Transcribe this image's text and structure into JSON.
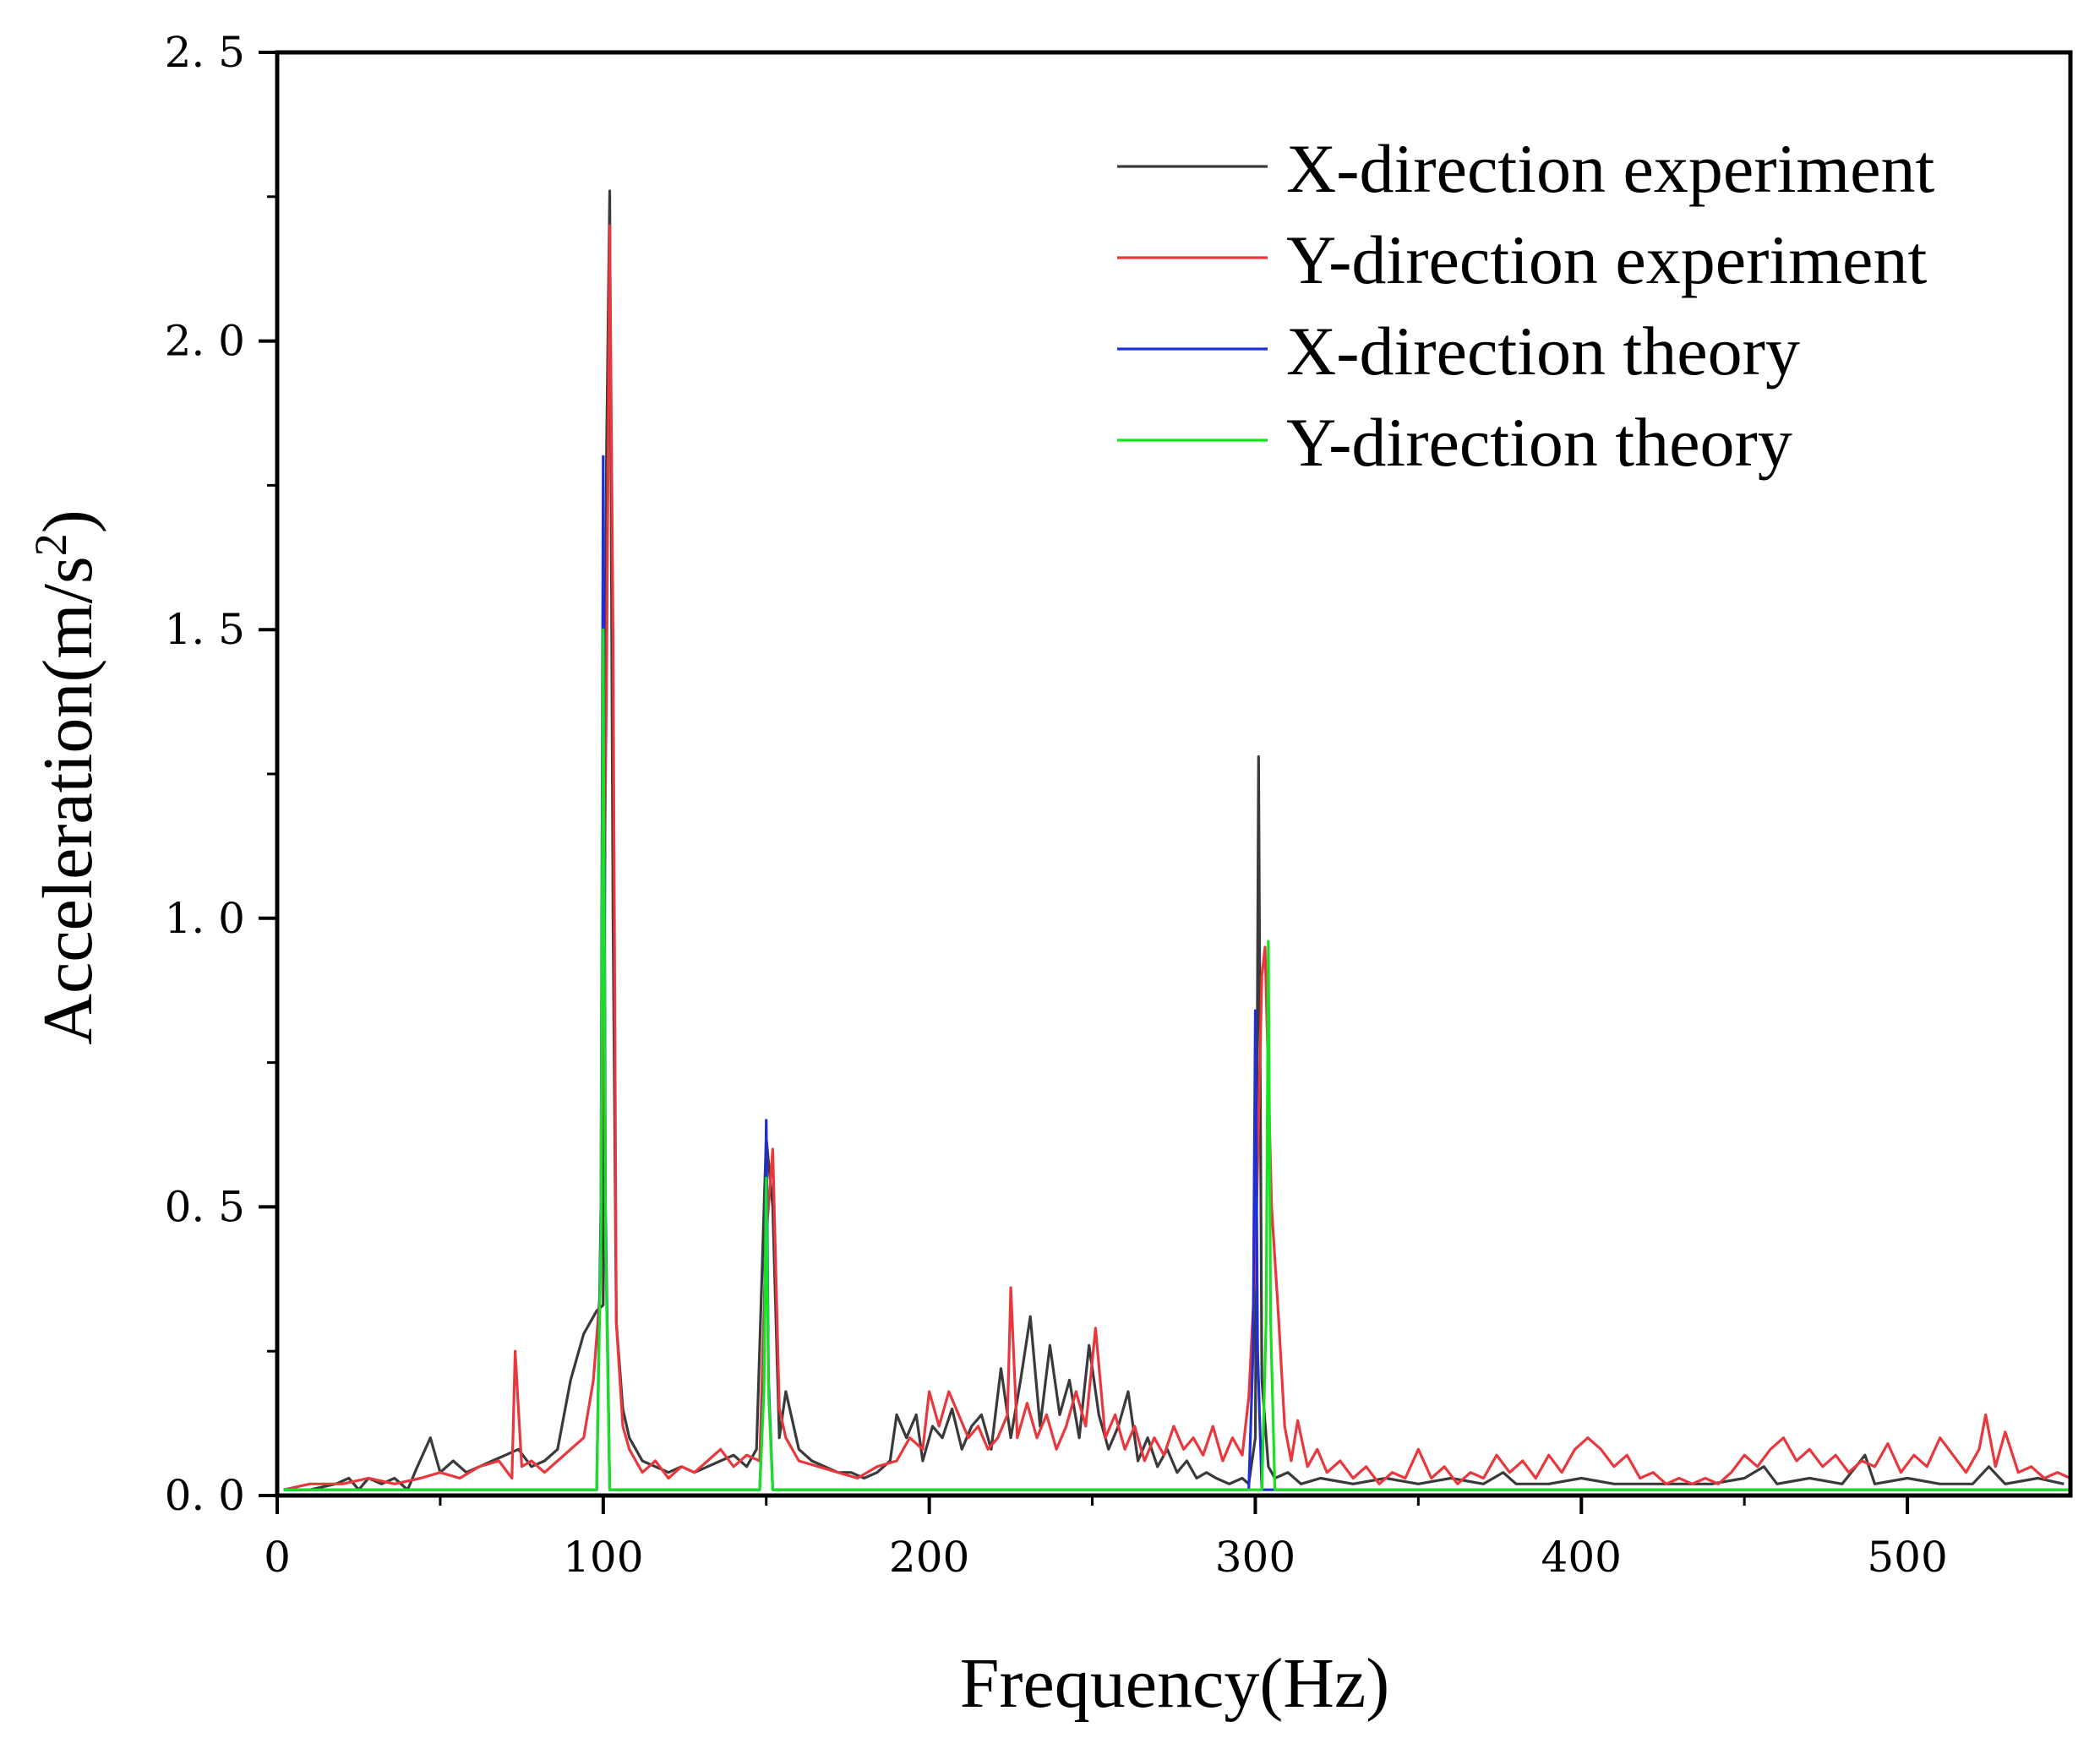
{
  "chart_data": {
    "type": "line",
    "title": "",
    "xlabel": "Frequency(Hz)",
    "ylabel": "Acceleration(m/s",
    "ylabel_superscript": "2",
    "ylabel_close": ")",
    "xlim": [
      0,
      550
    ],
    "ylim": [
      0,
      2.5
    ],
    "xticks": [
      0,
      100,
      200,
      300,
      400,
      500
    ],
    "xtick_labels": [
      "0",
      "100",
      "200",
      "300",
      "400",
      "500"
    ],
    "yticks": [
      0,
      0.5,
      1.0,
      1.5,
      2.0,
      2.5
    ],
    "ytick_labels": [
      "0. 0",
      "0. 5",
      "1. 0",
      "1. 5",
      "2. 0",
      "2. 5"
    ],
    "grid": false,
    "legend_position": "top-right",
    "series": [
      {
        "name": "X-direction experiment",
        "color": "#3a3a3a",
        "x": [
          2,
          10,
          18,
          22,
          25,
          28,
          32,
          36,
          40,
          43,
          47,
          50,
          54,
          58,
          62,
          66,
          70,
          74,
          78,
          82,
          86,
          90,
          94,
          96,
          98,
          100,
          101,
          102,
          103,
          104,
          106,
          108,
          112,
          116,
          120,
          124,
          128,
          132,
          136,
          140,
          144,
          147,
          150,
          152,
          154,
          156,
          160,
          164,
          168,
          172,
          176,
          180,
          184,
          188,
          190,
          193,
          196,
          198,
          201,
          204,
          207,
          210,
          213,
          216,
          219,
          222,
          225,
          228,
          231,
          234,
          237,
          240,
          243,
          246,
          249,
          252,
          255,
          258,
          261,
          264,
          267,
          270,
          273,
          276,
          279,
          282,
          285,
          288,
          292,
          296,
          298,
          300,
          301,
          302,
          304,
          306,
          310,
          314,
          320,
          330,
          340,
          350,
          360,
          370,
          376,
          380,
          390,
          400,
          410,
          420,
          430,
          440,
          450,
          456,
          460,
          470,
          480,
          487,
          490,
          500,
          510,
          520,
          525,
          530,
          540,
          548
        ],
        "y": [
          0.01,
          0.01,
          0.02,
          0.03,
          0.01,
          0.03,
          0.02,
          0.03,
          0.01,
          0.05,
          0.1,
          0.04,
          0.06,
          0.04,
          0.05,
          0.06,
          0.07,
          0.08,
          0.05,
          0.06,
          0.08,
          0.2,
          0.28,
          0.3,
          0.32,
          0.33,
          1.8,
          2.26,
          1.0,
          0.3,
          0.15,
          0.1,
          0.06,
          0.05,
          0.04,
          0.05,
          0.04,
          0.05,
          0.06,
          0.07,
          0.05,
          0.08,
          0.62,
          0.5,
          0.1,
          0.18,
          0.08,
          0.06,
          0.05,
          0.04,
          0.04,
          0.03,
          0.04,
          0.06,
          0.14,
          0.1,
          0.14,
          0.06,
          0.12,
          0.1,
          0.15,
          0.08,
          0.12,
          0.14,
          0.08,
          0.22,
          0.1,
          0.2,
          0.31,
          0.12,
          0.26,
          0.14,
          0.2,
          0.1,
          0.26,
          0.14,
          0.08,
          0.12,
          0.18,
          0.06,
          0.1,
          0.05,
          0.08,
          0.04,
          0.06,
          0.03,
          0.04,
          0.03,
          0.02,
          0.03,
          0.02,
          0.1,
          1.28,
          0.2,
          0.05,
          0.03,
          0.04,
          0.02,
          0.03,
          0.02,
          0.03,
          0.02,
          0.03,
          0.02,
          0.04,
          0.02,
          0.02,
          0.03,
          0.02,
          0.02,
          0.02,
          0.02,
          0.03,
          0.05,
          0.02,
          0.03,
          0.02,
          0.07,
          0.02,
          0.03,
          0.02,
          0.02,
          0.05,
          0.02,
          0.03,
          0.02
        ]
      },
      {
        "name": "Y-direction experiment",
        "color": "#e8383d",
        "x": [
          2,
          10,
          20,
          28,
          36,
          44,
          50,
          56,
          62,
          68,
          72,
          73,
          75,
          78,
          82,
          86,
          90,
          94,
          97,
          99,
          101,
          102,
          103,
          104,
          106,
          108,
          112,
          116,
          120,
          124,
          128,
          132,
          136,
          140,
          144,
          148,
          150,
          152,
          154,
          156,
          160,
          166,
          172,
          178,
          184,
          190,
          194,
          198,
          200,
          203,
          206,
          209,
          212,
          215,
          218,
          221,
          224,
          225,
          227,
          230,
          233,
          236,
          239,
          242,
          245,
          248,
          251,
          254,
          257,
          260,
          263,
          266,
          269,
          272,
          275,
          278,
          281,
          284,
          287,
          290,
          293,
          296,
          298,
          300,
          302,
          303,
          305,
          307,
          309,
          311,
          313,
          316,
          319,
          322,
          326,
          330,
          334,
          338,
          342,
          346,
          350,
          354,
          358,
          362,
          366,
          370,
          374,
          378,
          382,
          386,
          390,
          394,
          398,
          402,
          406,
          410,
          414,
          418,
          422,
          426,
          430,
          434,
          438,
          442,
          446,
          450,
          454,
          458,
          462,
          466,
          470,
          474,
          478,
          482,
          486,
          490,
          494,
          498,
          502,
          506,
          510,
          514,
          518,
          522,
          524,
          527,
          530,
          534,
          538,
          542,
          546,
          550
        ],
        "y": [
          0.01,
          0.02,
          0.02,
          0.03,
          0.02,
          0.03,
          0.04,
          0.03,
          0.05,
          0.06,
          0.03,
          0.25,
          0.05,
          0.06,
          0.04,
          0.06,
          0.08,
          0.1,
          0.2,
          0.35,
          1.4,
          2.2,
          1.5,
          0.3,
          0.12,
          0.08,
          0.04,
          0.06,
          0.03,
          0.05,
          0.04,
          0.06,
          0.08,
          0.05,
          0.07,
          0.06,
          0.45,
          0.6,
          0.15,
          0.1,
          0.06,
          0.05,
          0.04,
          0.03,
          0.05,
          0.06,
          0.1,
          0.08,
          0.18,
          0.12,
          0.18,
          0.14,
          0.1,
          0.12,
          0.08,
          0.1,
          0.14,
          0.36,
          0.1,
          0.16,
          0.1,
          0.14,
          0.08,
          0.12,
          0.18,
          0.12,
          0.29,
          0.1,
          0.14,
          0.08,
          0.12,
          0.06,
          0.1,
          0.07,
          0.12,
          0.08,
          0.1,
          0.07,
          0.12,
          0.06,
          0.1,
          0.07,
          0.17,
          0.4,
          0.9,
          0.95,
          0.5,
          0.32,
          0.12,
          0.06,
          0.13,
          0.05,
          0.08,
          0.04,
          0.06,
          0.03,
          0.05,
          0.02,
          0.04,
          0.03,
          0.08,
          0.03,
          0.05,
          0.02,
          0.04,
          0.03,
          0.07,
          0.04,
          0.06,
          0.03,
          0.07,
          0.04,
          0.08,
          0.1,
          0.08,
          0.05,
          0.07,
          0.03,
          0.04,
          0.02,
          0.03,
          0.02,
          0.03,
          0.02,
          0.04,
          0.07,
          0.05,
          0.08,
          0.1,
          0.06,
          0.08,
          0.05,
          0.07,
          0.04,
          0.06,
          0.05,
          0.09,
          0.04,
          0.07,
          0.05,
          0.1,
          0.07,
          0.04,
          0.08,
          0.14,
          0.05,
          0.11,
          0.04,
          0.05,
          0.03,
          0.04,
          0.03
        ]
      },
      {
        "name": "X-direction theory",
        "color": "#1f2fd6",
        "x": [
          2,
          98,
          99.3,
          100,
          100.7,
          102,
          148,
          149.3,
          150,
          150.7,
          152,
          298,
          299.3,
          300,
          300.7,
          302,
          550
        ],
        "y": [
          0.01,
          0.01,
          0.5,
          1.8,
          0.5,
          0.01,
          0.01,
          0.2,
          0.65,
          0.2,
          0.01,
          0.01,
          0.25,
          0.84,
          0.25,
          0.01,
          0.01
        ]
      },
      {
        "name": "Y-direction theory",
        "color": "#19e021",
        "x": [
          2,
          98,
          99.3,
          100,
          100.7,
          102,
          148,
          149.3,
          150,
          150.7,
          152,
          302,
          303.3,
          304,
          304.7,
          306,
          550
        ],
        "y": [
          0.01,
          0.01,
          0.45,
          1.5,
          0.45,
          0.01,
          0.01,
          0.18,
          0.55,
          0.18,
          0.01,
          0.01,
          0.3,
          0.96,
          0.3,
          0.01,
          0.01
        ]
      }
    ]
  }
}
